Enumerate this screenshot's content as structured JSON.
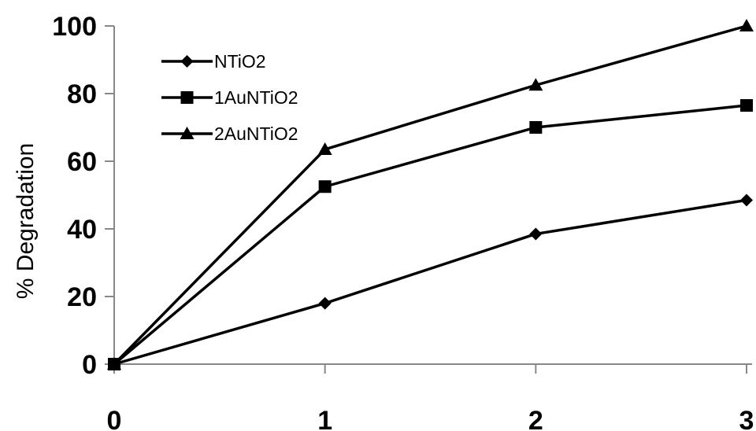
{
  "chart_data": {
    "type": "line",
    "title": "",
    "xlabel": "",
    "ylabel": "% Degradation",
    "x": [
      0,
      1,
      2,
      3
    ],
    "x_ticks": [
      "0",
      "1",
      "2",
      "3"
    ],
    "ylim": [
      0,
      100
    ],
    "y_ticks": [
      "0",
      "20",
      "40",
      "60",
      "80",
      "100"
    ],
    "grid": false,
    "legend_position": "top-left",
    "series": [
      {
        "name": "NTiO2",
        "marker": "diamond",
        "color": "#000000",
        "values": [
          0,
          18,
          38.5,
          48.5
        ]
      },
      {
        "name": "1AuNTiO2",
        "marker": "square",
        "color": "#000000",
        "values": [
          0,
          52.5,
          70,
          76.5
        ]
      },
      {
        "name": "2AuNTiO2",
        "marker": "triangle",
        "color": "#000000",
        "values": [
          0,
          63.5,
          82.5,
          100
        ]
      }
    ]
  }
}
